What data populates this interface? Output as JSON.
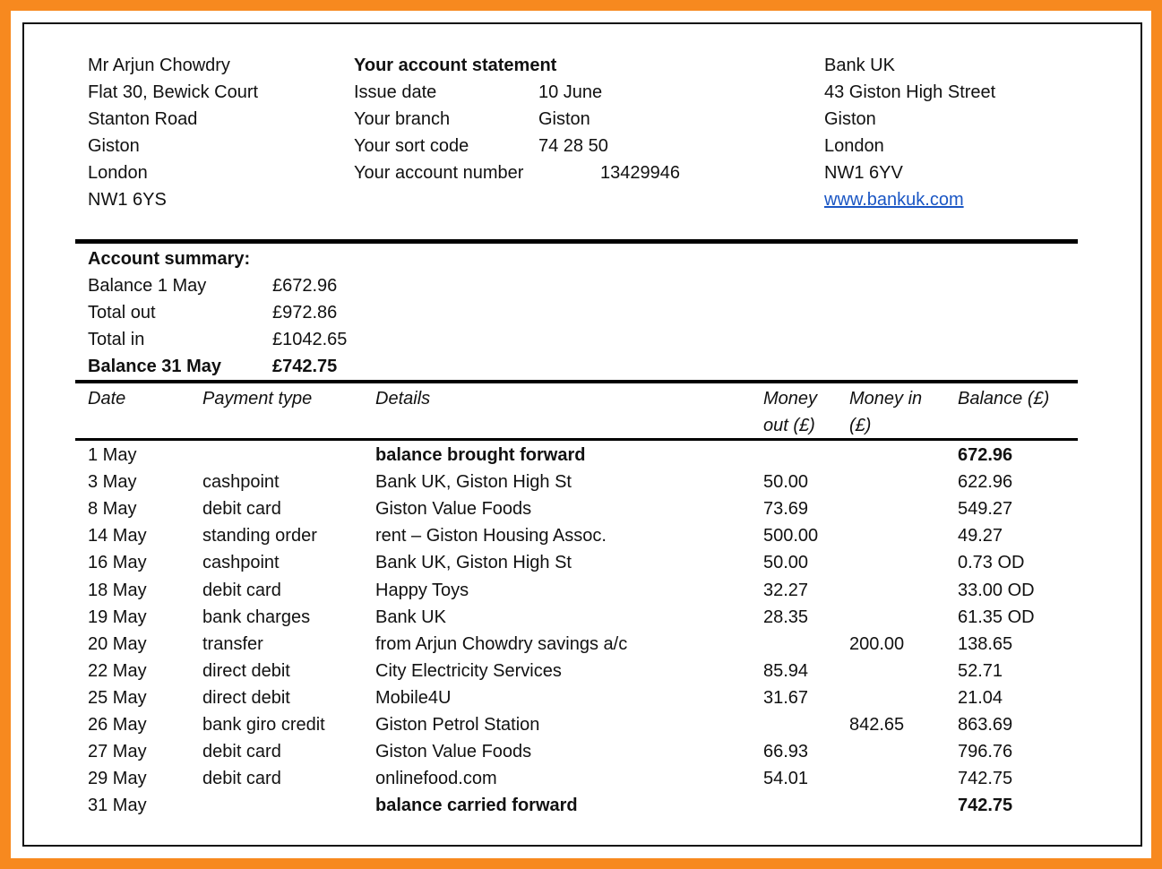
{
  "customer": {
    "lines": [
      "Mr Arjun Chowdry",
      "Flat 30, Bewick Court",
      "Stanton Road",
      "Giston",
      "London",
      "NW1 6YS"
    ]
  },
  "statement": {
    "title": "Your account statement",
    "rows": [
      {
        "label": "Issue date",
        "value": "10 June"
      },
      {
        "label": "Your branch",
        "value": "Giston"
      },
      {
        "label": "Your sort code",
        "value": "74 28 50"
      },
      {
        "label": "Your account number",
        "value": "13429946"
      }
    ]
  },
  "bank": {
    "lines": [
      "Bank UK",
      "43 Giston High Street",
      "Giston",
      "London",
      "NW1 6YV"
    ],
    "website": "www.bankuk.com"
  },
  "summary": {
    "title": "Account summary:",
    "rows": [
      {
        "label": "Balance 1 May",
        "value": "£672.96"
      },
      {
        "label": "Total out",
        "value": "£972.86"
      },
      {
        "label": "Total in",
        "value": "£1042.65"
      },
      {
        "label": "Balance 31 May",
        "value": "£742.75",
        "bold": true
      }
    ]
  },
  "table": {
    "columns": [
      "Date",
      "Payment type",
      "Details",
      "Money out (£)",
      "Money in (£)",
      "Balance (£)"
    ],
    "rows": [
      {
        "date": "1 May",
        "details": "balance brought forward",
        "balance": "672.96",
        "bold": true
      },
      {
        "date": "3 May",
        "type": "cashpoint",
        "details": "Bank UK, Giston High St",
        "out": "50.00",
        "balance": "622.96"
      },
      {
        "date": "8 May",
        "type": "debit card",
        "details": "Giston Value Foods",
        "out": "73.69",
        "balance": "549.27"
      },
      {
        "date": "14 May",
        "type": "standing order",
        "details": "rent – Giston Housing Assoc.",
        "out": "500.00",
        "balance": "49.27"
      },
      {
        "date": "16 May",
        "type": "cashpoint",
        "details": "Bank UK, Giston High St",
        "out": "50.00",
        "balance": "0.73 OD"
      },
      {
        "date": "18 May",
        "type": "debit card",
        "details": "Happy Toys",
        "out": "32.27",
        "balance": "33.00 OD"
      },
      {
        "date": "19 May",
        "type": "bank charges",
        "details": "Bank UK",
        "out": "28.35",
        "balance": "61.35 OD"
      },
      {
        "date": "20 May",
        "type": "transfer",
        "details": "from Arjun Chowdry savings a/c",
        "in": "200.00",
        "balance": "138.65"
      },
      {
        "date": "22 May",
        "type": "direct debit",
        "details": "City Electricity Services",
        "out": "85.94",
        "balance": "52.71"
      },
      {
        "date": "25 May",
        "type": "direct debit",
        "details": "Mobile4U",
        "out": "31.67",
        "balance": "21.04"
      },
      {
        "date": "26 May",
        "type": "bank giro credit",
        "details": "Giston Petrol Station",
        "in": "842.65",
        "balance": "863.69"
      },
      {
        "date": "27 May",
        "type": "debit card",
        "details": "Giston Value Foods",
        "out": "66.93",
        "balance": "796.76"
      },
      {
        "date": "29 May",
        "type": "debit card",
        "details": "onlinefood.com",
        "out": "54.01",
        "balance": "742.75"
      },
      {
        "date": "31 May",
        "details": "balance carried forward",
        "balance": "742.75",
        "bold": true
      }
    ]
  }
}
